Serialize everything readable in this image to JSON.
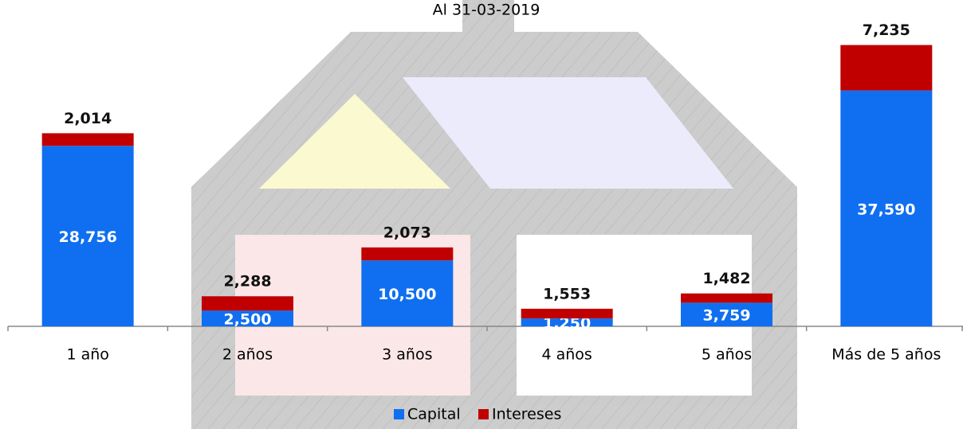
{
  "chart_data": {
    "type": "bar",
    "stacked": true,
    "title": "Al 31-03-2019",
    "categories": [
      "1 año",
      "2 años",
      "3 años",
      "4 años",
      "5 años",
      "Más de 5 años"
    ],
    "series": [
      {
        "name": "Capital",
        "color": "#0f6ff0",
        "values": [
          28756,
          2500,
          10500,
          1250,
          3759,
          37590
        ],
        "value_labels": [
          "28,756",
          "2,500",
          "10,500",
          "1,250",
          "3,759",
          "37,590"
        ]
      },
      {
        "name": "Intereses",
        "color": "#c00000",
        "values": [
          2014,
          2288,
          2073,
          1553,
          1482,
          7235
        ],
        "value_labels": [
          "2,014",
          "2,288",
          "2,073",
          "1,553",
          "1,482",
          "7,235"
        ]
      }
    ],
    "ylim": [
      0,
      52000
    ],
    "legend": "bottom"
  }
}
